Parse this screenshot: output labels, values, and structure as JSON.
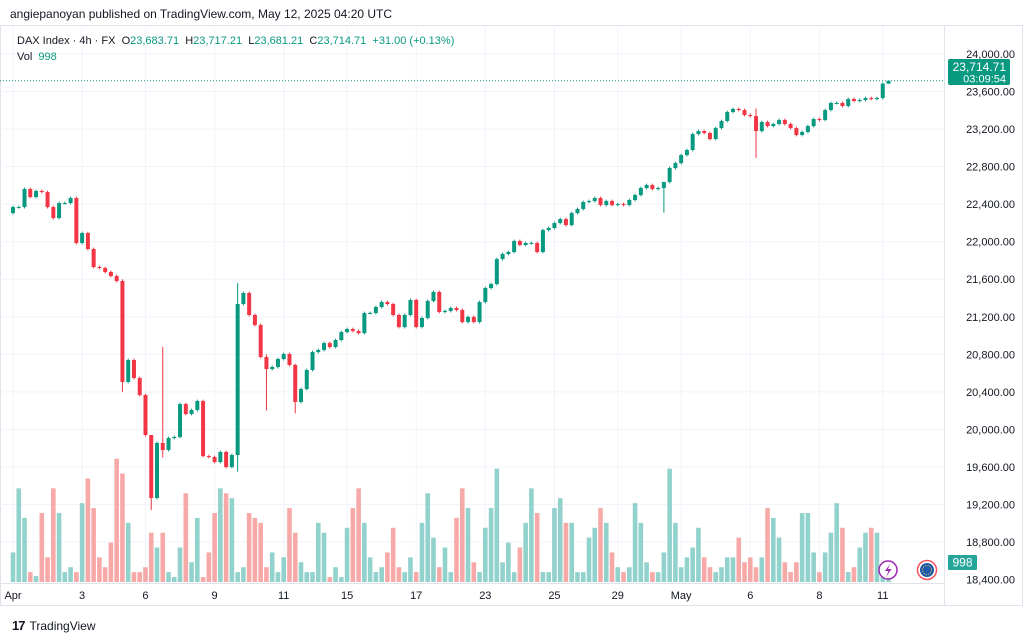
{
  "header": {
    "publisher_line": "angiepanoyan published on TradingView.com, May 12, 2025 04:20 UTC"
  },
  "legend": {
    "symbol": "DAX Index · 4h · FX",
    "open_label": "O",
    "open": "23,683.71",
    "high_label": "H",
    "high": "23,717.21",
    "low_label": "L",
    "low": "23,681.21",
    "close_label": "C",
    "close": "23,714.71",
    "change": "+31.00 (+0.13%)",
    "vol_label": "Vol",
    "vol": "998"
  },
  "last_price": {
    "price": "23,714.71",
    "countdown": "03:09:54",
    "color": "#089981"
  },
  "volume_badge": {
    "value": "998",
    "color": "#26a69a"
  },
  "footer": {
    "brand": "TradingView"
  },
  "icons": {
    "lightning": "lightning-icon",
    "eu_flag": "eu-flag-icon"
  },
  "colors": {
    "up": "#089981",
    "down": "#f23645",
    "vol_up": "#92d2cc",
    "vol_down": "#f7a9a7"
  },
  "chart_data": {
    "type": "candlestick",
    "title": "DAX Index · 4h · FX",
    "ylim": [
      18400,
      24000
    ],
    "y_ticks": [
      "24,000.00",
      "23,600.00",
      "23,200.00",
      "22,800.00",
      "22,400.00",
      "22,000.00",
      "21,600.00",
      "21,200.00",
      "20,800.00",
      "20,400.00",
      "20,000.00",
      "19,600.00",
      "19,200.00",
      "18,800.00",
      "18,400.00"
    ],
    "y_tick_values": [
      24000,
      23600,
      23200,
      22800,
      22400,
      22000,
      21600,
      21200,
      20800,
      20400,
      20000,
      19600,
      19200,
      18800,
      18400
    ],
    "x_ticks": [
      {
        "label": "Apr",
        "index": 0
      },
      {
        "label": "3",
        "index": 12
      },
      {
        "label": "6",
        "index": 23
      },
      {
        "label": "9",
        "index": 35
      },
      {
        "label": "11",
        "index": 47
      },
      {
        "label": "15",
        "index": 58
      },
      {
        "label": "17",
        "index": 70
      },
      {
        "label": "23",
        "index": 82
      },
      {
        "label": "25",
        "index": 94
      },
      {
        "label": "29",
        "index": 105
      },
      {
        "label": "May",
        "index": 116
      },
      {
        "label": "6",
        "index": 128
      },
      {
        "label": "8",
        "index": 140
      },
      {
        "label": "11",
        "index": 151
      }
    ],
    "first_open": 22305,
    "default_wick": 15,
    "close": [
      22369,
      22369,
      22561,
      22476,
      22540,
      22529,
      22369,
      22252,
      22412,
      22412,
      22465,
      21986,
      22092,
      21922,
      21730,
      21720,
      21677,
      21634,
      21581,
      20505,
      20739,
      20547,
      20366,
      19940,
      19269,
      19855,
      19780,
      19908,
      19919,
      20270,
      20164,
      20206,
      20302,
      19716,
      19705,
      19652,
      19759,
      19599,
      19727,
      21336,
      21453,
      21219,
      21112,
      20771,
      20643,
      20665,
      20750,
      20803,
      20686,
      20292,
      20430,
      20633,
      20824,
      20846,
      20920,
      20878,
      20952,
      21037,
      21069,
      21048,
      21026,
      21240,
      21240,
      21304,
      21357,
      21336,
      21219,
      21091,
      21219,
      21379,
      21091,
      21187,
      21368,
      21464,
      21251,
      21262,
      21293,
      21272,
      21144,
      21198,
      21144,
      21357,
      21506,
      21549,
      21815,
      21869,
      21890,
      22007,
      21965,
      21986,
      21986,
      21890,
      22124,
      22146,
      22199,
      22241,
      22177,
      22305,
      22348,
      22423,
      22433,
      22465,
      22391,
      22433,
      22391,
      22401,
      22391,
      22444,
      22497,
      22572,
      22604,
      22561,
      22572,
      22636,
      22785,
      22838,
      22923,
      22977,
      23147,
      23179,
      23158,
      23094,
      23211,
      23286,
      23382,
      23414,
      23403,
      23350,
      23339,
      23179,
      23275,
      23232,
      23254,
      23297,
      23254,
      23211,
      23137,
      23169,
      23232,
      23307,
      23297,
      23403,
      23478,
      23478,
      23446,
      23520,
      23499,
      23510,
      23531,
      23520,
      23531,
      23683.71,
      23714.71
    ],
    "wick_overrides": [
      {
        "index": 19,
        "high": 21600,
        "low": 20400
      },
      {
        "index": 24,
        "high": 19940,
        "low": 19140
      },
      {
        "index": 26,
        "high": 20880,
        "low": 19700
      },
      {
        "index": 39,
        "high": 21560,
        "low": 19550
      },
      {
        "index": 44,
        "high": 20800,
        "low": 20200
      },
      {
        "index": 49,
        "high": 20700,
        "low": 20170
      },
      {
        "index": 113,
        "high": 22640,
        "low": 22310
      },
      {
        "index": 129,
        "high": 23420,
        "low": 22890
      },
      {
        "index": 152,
        "high": 23717.21,
        "low": 23681.21
      }
    ],
    "volume": [
      4200,
      13300,
      9100,
      1400,
      840,
      9800,
      3500,
      13300,
      9800,
      1400,
      2100,
      1400,
      11200,
      14700,
      10500,
      3500,
      2100,
      5600,
      17500,
      15400,
      8400,
      1400,
      1400,
      2100,
      7000,
      4900,
      7000,
      1400,
      700,
      4900,
      12600,
      2800,
      9100,
      700,
      4200,
      9800,
      13300,
      12600,
      11900,
      1400,
      2100,
      9800,
      9100,
      8400,
      2100,
      4200,
      1400,
      3500,
      10500,
      7000,
      2800,
      1400,
      1400,
      8400,
      7000,
      700,
      2100,
      700,
      7700,
      10500,
      13300,
      8400,
      3500,
      1400,
      2100,
      4200,
      7700,
      2100,
      1400,
      3500,
      1400,
      8400,
      12600,
      6300,
      2100,
      4900,
      1400,
      9100,
      13300,
      10500,
      2800,
      1400,
      7700,
      10500,
      16100,
      2800,
      5600,
      1400,
      4900,
      8400,
      13300,
      9800,
      1400,
      1400,
      10500,
      11900,
      8400,
      8400,
      1400,
      1400,
      6300,
      7700,
      10500,
      8400,
      4200,
      2100,
      1400,
      2100,
      11200,
      8400,
      2800,
      1400,
      1400,
      4200,
      16100,
      8400,
      2100,
      3500,
      4900,
      7700,
      3500,
      2100,
      1400,
      2100,
      3500,
      3500,
      6300,
      2800,
      3500,
      2100,
      3500,
      10500,
      9100,
      6300,
      2800,
      1400,
      2800,
      9800,
      9800,
      4200,
      1400,
      4200,
      7000,
      11200,
      7700,
      1400,
      2100,
      4900,
      7000,
      7700,
      7000,
      700,
      998
    ]
  }
}
